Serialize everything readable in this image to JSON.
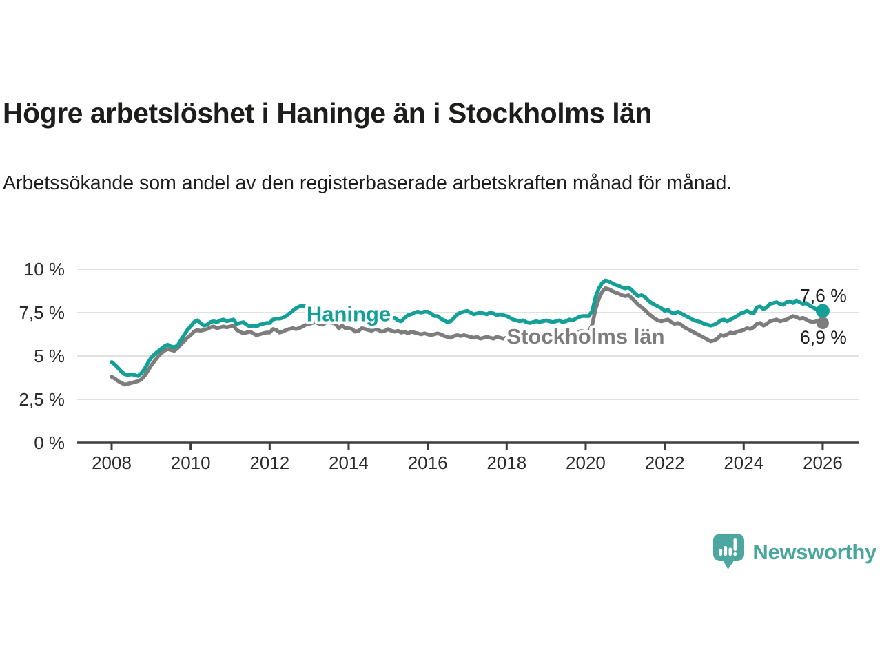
{
  "header": {
    "title": "Högre arbetslöshet i Haninge än i Stockholms län",
    "subtitle": "Arbetssökande som andel av den registerbaserade arbetskraften månad för månad."
  },
  "chart_data": {
    "type": "line",
    "title": "Högre arbetslöshet i Haninge än i Stockholms län",
    "unit": "%",
    "x_start_year": 2008,
    "points_per_year": 12,
    "x_ticks": [
      2008,
      2010,
      2012,
      2014,
      2016,
      2018,
      2020,
      2022,
      2024,
      2026
    ],
    "y_ticks": [
      {
        "value": 0,
        "label": "0 %"
      },
      {
        "value": 2.5,
        "label": "2,5 %"
      },
      {
        "value": 5,
        "label": "5 %"
      },
      {
        "value": 7.5,
        "label": "7,5 %"
      },
      {
        "value": 10,
        "label": "10 %"
      }
    ],
    "ylim": [
      0,
      10.5
    ],
    "grid": true,
    "legend_position": "inline-labels",
    "series": [
      {
        "name": "Haninge",
        "color": "#14A096",
        "end_label": "7,6 %",
        "end_value": 7.6,
        "end_label_position": "above",
        "label_anchor": {
          "year": 2014.0,
          "value": 7.45
        },
        "values": [
          4.65,
          4.5,
          4.3,
          4.1,
          3.95,
          3.9,
          3.95,
          3.9,
          3.85,
          4.0,
          4.25,
          4.6,
          4.9,
          5.1,
          5.25,
          5.4,
          5.55,
          5.65,
          5.55,
          5.5,
          5.6,
          5.9,
          6.2,
          6.5,
          6.7,
          6.95,
          7.05,
          6.9,
          6.75,
          6.8,
          6.95,
          7.0,
          6.95,
          7.05,
          7.1,
          7.0,
          7.05,
          7.1,
          6.85,
          6.9,
          6.95,
          6.8,
          6.7,
          6.75,
          6.7,
          6.8,
          6.85,
          6.9,
          6.9,
          7.1,
          7.15,
          7.15,
          7.2,
          7.3,
          7.45,
          7.6,
          7.75,
          7.85,
          7.9,
          7.85,
          7.9,
          7.8,
          7.7,
          7.6,
          7.55,
          7.5,
          7.45,
          7.4,
          7.45,
          7.4,
          7.35,
          7.4,
          7.45,
          7.4,
          7.35,
          7.3,
          7.35,
          7.3,
          7.25,
          7.3,
          7.25,
          7.2,
          7.15,
          7.1,
          7.1,
          7.15,
          7.2,
          7.05,
          7.0,
          7.2,
          7.35,
          7.4,
          7.5,
          7.55,
          7.5,
          7.55,
          7.55,
          7.45,
          7.3,
          7.3,
          7.15,
          7.05,
          6.95,
          7.0,
          7.2,
          7.4,
          7.5,
          7.55,
          7.6,
          7.5,
          7.4,
          7.45,
          7.5,
          7.45,
          7.4,
          7.5,
          7.45,
          7.35,
          7.4,
          7.35,
          7.3,
          7.2,
          7.1,
          7.05,
          7.0,
          7.05,
          6.95,
          6.9,
          6.95,
          7.0,
          6.95,
          7.0,
          7.05,
          7.0,
          6.95,
          7.0,
          7.05,
          6.95,
          7.0,
          7.1,
          7.05,
          7.15,
          7.25,
          7.3,
          7.3,
          7.3,
          7.6,
          8.4,
          8.9,
          9.2,
          9.35,
          9.3,
          9.2,
          9.1,
          9.05,
          8.95,
          8.9,
          8.95,
          8.8,
          8.6,
          8.45,
          8.5,
          8.4,
          8.2,
          8.05,
          7.95,
          7.85,
          7.75,
          7.6,
          7.65,
          7.5,
          7.45,
          7.55,
          7.45,
          7.35,
          7.25,
          7.15,
          7.05,
          7.0,
          6.95,
          6.85,
          6.8,
          6.75,
          6.8,
          6.9,
          7.05,
          7.1,
          7.0,
          7.1,
          7.2,
          7.3,
          7.45,
          7.5,
          7.6,
          7.5,
          7.45,
          7.8,
          7.85,
          7.7,
          7.8,
          8.0,
          8.05,
          8.1,
          8.0,
          7.95,
          8.1,
          8.15,
          8.05,
          8.2,
          8.1,
          8.0,
          8.05,
          7.9,
          7.8,
          7.7,
          7.65,
          7.6
        ]
      },
      {
        "name": "Stockholms län",
        "color": "#7D7D7D",
        "end_label": "6,9 %",
        "end_value": 6.9,
        "end_label_position": "below",
        "label_anchor": {
          "year": 2020.0,
          "value": 6.15
        },
        "values": [
          3.8,
          3.7,
          3.55,
          3.45,
          3.35,
          3.4,
          3.45,
          3.5,
          3.55,
          3.65,
          3.85,
          4.15,
          4.45,
          4.7,
          4.95,
          5.15,
          5.3,
          5.4,
          5.35,
          5.3,
          5.45,
          5.65,
          5.85,
          6.05,
          6.2,
          6.4,
          6.5,
          6.45,
          6.5,
          6.55,
          6.65,
          6.7,
          6.6,
          6.65,
          6.7,
          6.65,
          6.7,
          6.75,
          6.5,
          6.4,
          6.3,
          6.35,
          6.4,
          6.3,
          6.2,
          6.25,
          6.3,
          6.35,
          6.35,
          6.55,
          6.5,
          6.35,
          6.4,
          6.5,
          6.55,
          6.6,
          6.55,
          6.6,
          6.7,
          6.8,
          6.85,
          6.9,
          6.95,
          6.85,
          6.8,
          6.9,
          6.95,
          6.9,
          6.85,
          6.6,
          6.75,
          6.6,
          6.6,
          6.55,
          6.4,
          6.45,
          6.6,
          6.55,
          6.5,
          6.45,
          6.55,
          6.5,
          6.4,
          6.45,
          6.55,
          6.45,
          6.4,
          6.45,
          6.35,
          6.4,
          6.3,
          6.4,
          6.35,
          6.3,
          6.25,
          6.3,
          6.25,
          6.2,
          6.25,
          6.3,
          6.25,
          6.15,
          6.1,
          6.05,
          6.15,
          6.2,
          6.15,
          6.2,
          6.15,
          6.1,
          6.05,
          6.1,
          6.0,
          6.05,
          6.1,
          6.05,
          6.0,
          6.1,
          6.05,
          6.0,
          6.05,
          6.0,
          5.9,
          5.85,
          5.8,
          5.85,
          5.95,
          5.9,
          5.95,
          6.0,
          6.05,
          6.0,
          6.05,
          6.1,
          6.15,
          6.1,
          6.2,
          6.15,
          6.2,
          6.25,
          6.3,
          6.35,
          6.4,
          6.45,
          6.4,
          6.45,
          6.8,
          7.7,
          8.3,
          8.7,
          8.9,
          8.85,
          8.75,
          8.65,
          8.6,
          8.5,
          8.45,
          8.5,
          8.35,
          8.15,
          7.95,
          7.8,
          7.65,
          7.45,
          7.3,
          7.15,
          7.05,
          7.0,
          7.05,
          7.1,
          6.95,
          6.85,
          6.9,
          6.8,
          6.65,
          6.55,
          6.45,
          6.35,
          6.25,
          6.15,
          6.05,
          5.95,
          5.85,
          5.9,
          6.0,
          6.2,
          6.15,
          6.25,
          6.35,
          6.3,
          6.4,
          6.45,
          6.5,
          6.6,
          6.55,
          6.65,
          6.85,
          6.9,
          6.75,
          6.85,
          7.0,
          7.05,
          7.1,
          7.0,
          7.05,
          7.1,
          7.2,
          7.3,
          7.25,
          7.15,
          7.2,
          7.1,
          7.0,
          6.95,
          7.0,
          6.95,
          6.9
        ]
      }
    ]
  },
  "colors": {
    "axis": "#3c3c3c",
    "grid": "#e1e1e1",
    "tick_text": "#2b2b2b",
    "title_text": "#1d1d1b",
    "brand_teal": "#4BA59F"
  },
  "footer": {
    "brand": "Newsworthy",
    "logo_icon": "newsworthy-speech-bubble-chart-icon"
  }
}
